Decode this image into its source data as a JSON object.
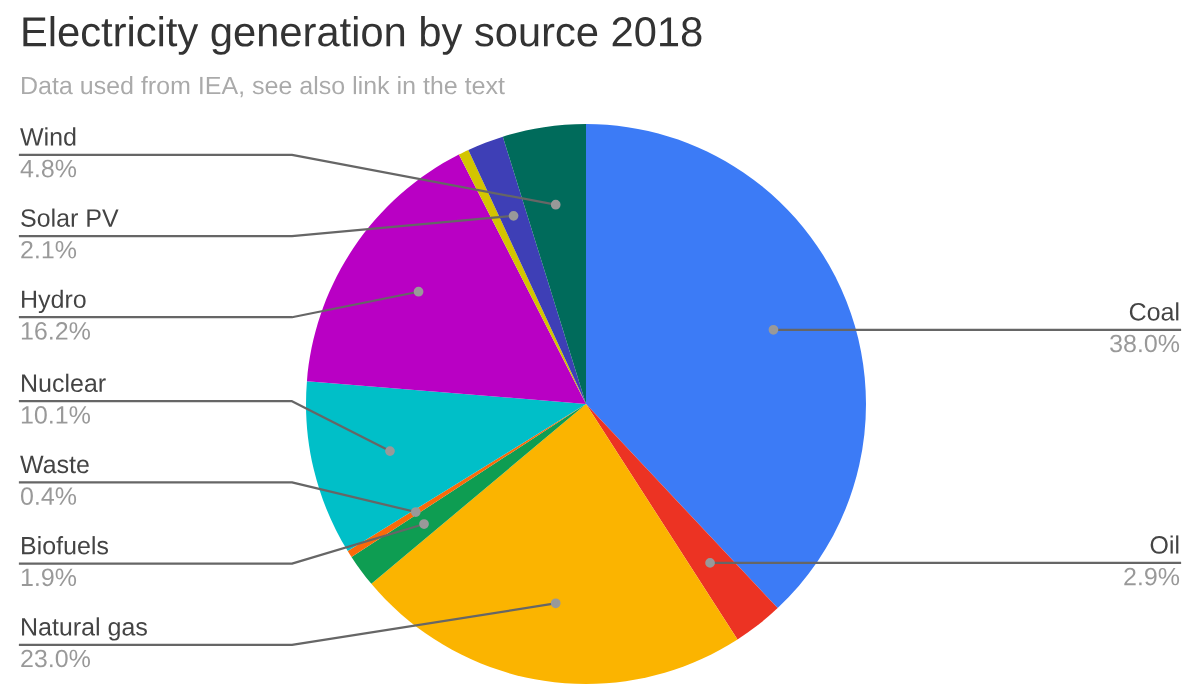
{
  "chart_data": {
    "type": "pie",
    "title": "Electricity generation by source 2018",
    "subtitle": "Data used from IEA, see also link in the text",
    "categories": [
      "Coal",
      "Oil",
      "Natural gas",
      "Biofuels",
      "Waste",
      "Nuclear",
      "Hydro",
      null,
      "Solar PV",
      "Wind"
    ],
    "values": [
      38.0,
      2.9,
      23.0,
      1.9,
      0.4,
      10.1,
      16.2,
      0.6,
      2.1,
      4.8
    ],
    "value_labels": [
      "38.0%",
      "2.9%",
      "23.0%",
      "1.9%",
      "0.4%",
      "10.1%",
      "16.2%",
      null,
      "2.1%",
      "4.8%"
    ],
    "colors": [
      "#3c7bf6",
      "#ec3323",
      "#fbb400",
      "#0e9d52",
      "#fa6a0a",
      "#00bfc8",
      "#b900c4",
      "#d3c500",
      "#3e3fb6",
      "#006b5b"
    ],
    "legend": false
  }
}
